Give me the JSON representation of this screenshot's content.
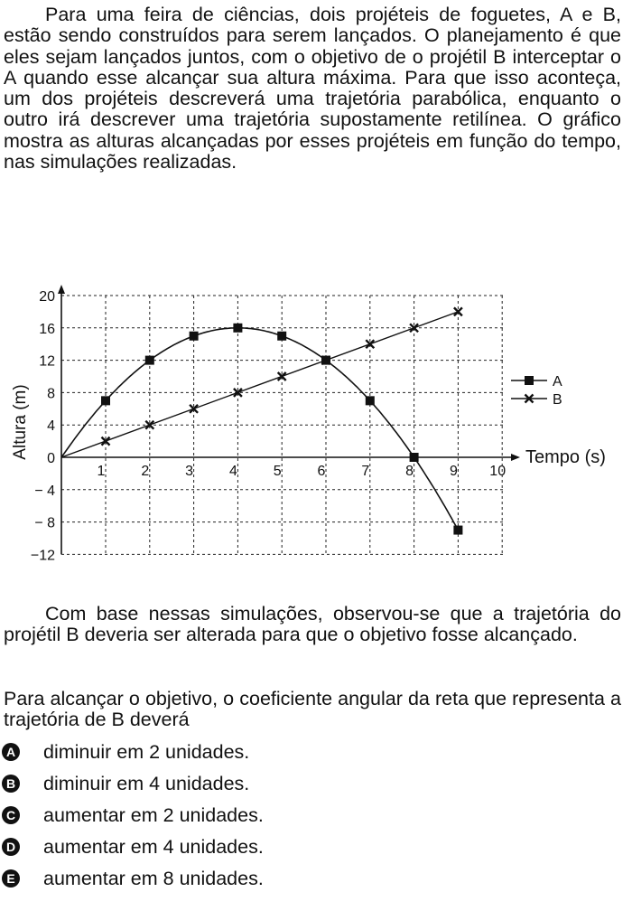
{
  "intro": "Para uma feira de ciências, dois projéteis de foguetes, A e B, estão sendo construídos para serem lançados. O planejamento é que eles sejam lançados juntos, com o objetivo de o projétil B interceptar o A quando esse alcançar sua altura máxima. Para que isso aconteça, um dos projéteis descreverá uma trajetória parabólica, enquanto o outro irá descrever uma trajetória supostamente retilínea. O gráfico mostra as alturas alcançadas por esses projéteis em função do tempo, nas simulações realizadas.",
  "observation": "Com base nessas simulações, observou-se que a trajetória do projétil B deveria ser alterada para que o objetivo fosse alcançado.",
  "question": "Para alcançar o objetivo, o coeficiente angular da reta que representa a trajetória de B deverá",
  "options": [
    {
      "letter": "A",
      "text": "diminuir em 2 unidades."
    },
    {
      "letter": "B",
      "text": "diminuir em 4 unidades."
    },
    {
      "letter": "C",
      "text": "aumentar em 2 unidades."
    },
    {
      "letter": "D",
      "text": "aumentar em 4 unidades."
    },
    {
      "letter": "E",
      "text": "aumentar em 8 unidades."
    }
  ],
  "chart_data": {
    "type": "line",
    "xlabel": "Tempo (s)",
    "ylabel": "Altura (m)",
    "xlim": [
      0,
      10
    ],
    "ylim": [
      -12,
      20
    ],
    "x_ticks": [
      1,
      2,
      3,
      4,
      5,
      6,
      7,
      8,
      9,
      10
    ],
    "y_ticks": [
      20,
      16,
      12,
      8,
      4,
      0,
      -4,
      -8,
      -12
    ],
    "y_tick_labels": [
      "20",
      "16",
      "12",
      "8",
      "4",
      "0",
      "− 4",
      "− 8",
      "−12"
    ],
    "grid": true,
    "legend_position": "right",
    "series": [
      {
        "name": "A",
        "marker": "square",
        "x": [
          1,
          2,
          3,
          4,
          5,
          6,
          7,
          8,
          9
        ],
        "y": [
          7,
          12,
          15,
          16,
          15,
          12,
          7,
          0,
          -9
        ]
      },
      {
        "name": "B",
        "marker": "x",
        "x": [
          1,
          2,
          3,
          4,
          5,
          6,
          7,
          8,
          9
        ],
        "y": [
          2,
          4,
          6,
          8,
          10,
          12,
          14,
          16,
          18
        ]
      }
    ]
  }
}
